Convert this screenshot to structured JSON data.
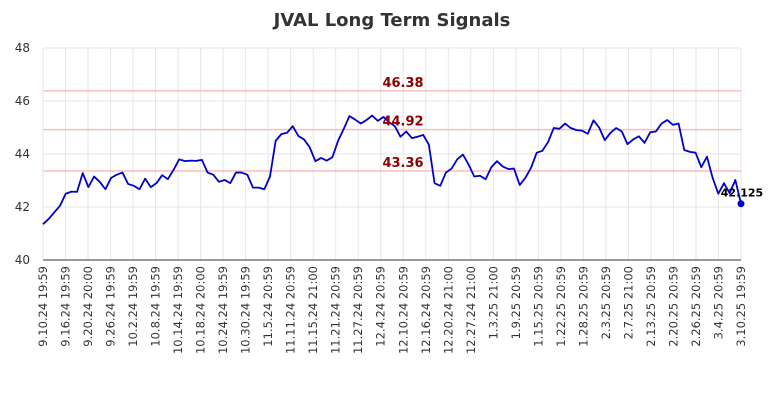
{
  "chart_data": {
    "type": "line",
    "title": "JVAL Long Term Signals",
    "xlabel": "",
    "ylabel": "",
    "ylim": [
      40,
      48
    ],
    "yticks": [
      40,
      42,
      44,
      46,
      48
    ],
    "grid": true,
    "x_tick_labels": [
      "9.10.24 19:59",
      "9.16.24 19:59",
      "9.20.24 20:00",
      "9.26.24 19:59",
      "10.2.24 19:59",
      "10.8.24 19:59",
      "10.14.24 19:59",
      "10.18.24 20:00",
      "10.24.24 19:59",
      "10.30.24 19:59",
      "11.5.24 20:59",
      "11.11.24 20:59",
      "11.15.24 21:00",
      "11.21.24 20:59",
      "11.27.24 20:59",
      "12.4.24 20:59",
      "12.10.24 20:59",
      "12.16.24 20:59",
      "12.20.24 21:00",
      "12.27.24 21:00",
      "1.3.25 21:00",
      "1.9.25 20:59",
      "1.15.25 20:59",
      "1.22.25 20:59",
      "1.28.25 20:59",
      "2.3.25 20:59",
      "2.7.25 21:00",
      "2.13.25 20:59",
      "2.20.25 20:59",
      "2.26.25 20:59",
      "3.4.25 20:59",
      "3.10.25 19:59"
    ],
    "series": [
      {
        "name": "JVAL",
        "color": "#0000cc",
        "values": [
          41.35,
          41.55,
          41.8,
          42.05,
          42.5,
          42.58,
          42.57,
          43.28,
          42.75,
          43.15,
          42.95,
          42.67,
          43.1,
          43.22,
          43.3,
          42.87,
          42.8,
          42.67,
          43.07,
          42.75,
          42.9,
          43.2,
          43.05,
          43.4,
          43.8,
          43.73,
          43.75,
          43.74,
          43.78,
          43.3,
          43.22,
          42.95,
          43.02,
          42.9,
          43.3,
          43.3,
          43.22,
          42.73,
          42.73,
          42.67,
          43.15,
          44.5,
          44.75,
          44.8,
          45.05,
          44.68,
          44.55,
          44.25,
          43.73,
          43.85,
          43.75,
          43.88,
          44.5,
          44.95,
          45.43,
          45.3,
          45.15,
          45.28,
          45.45,
          45.25,
          45.4,
          45.2,
          45.05,
          44.65,
          44.85,
          44.6,
          44.65,
          44.72,
          44.35,
          42.9,
          42.8,
          43.3,
          43.45,
          43.8,
          43.98,
          43.6,
          43.15,
          43.18,
          43.05,
          43.5,
          43.73,
          43.53,
          43.43,
          43.45,
          42.83,
          43.1,
          43.48,
          44.05,
          44.12,
          44.45,
          44.98,
          44.95,
          45.15,
          44.98,
          44.9,
          44.88,
          44.76,
          45.27,
          45.0,
          44.52,
          44.8,
          44.98,
          44.85,
          44.37,
          44.55,
          44.67,
          44.42,
          44.82,
          44.85,
          45.15,
          45.28,
          45.1,
          45.15,
          44.15,
          44.08,
          44.05,
          43.5,
          43.9,
          43.1,
          42.5,
          42.9,
          42.52,
          43.02,
          42.125
        ]
      }
    ],
    "horizontal_lines": [
      {
        "value": 46.38,
        "label": "46.38",
        "color": "#ffbbbb",
        "label_color": "#8b0000"
      },
      {
        "value": 44.92,
        "label": "44.92",
        "color": "#ffbbbb",
        "label_color": "#8b0000"
      },
      {
        "value": 43.36,
        "label": "43.36",
        "color": "#ffbbbb",
        "label_color": "#8b0000"
      }
    ],
    "last_point": {
      "value": 42.125,
      "label": "42.125"
    }
  }
}
